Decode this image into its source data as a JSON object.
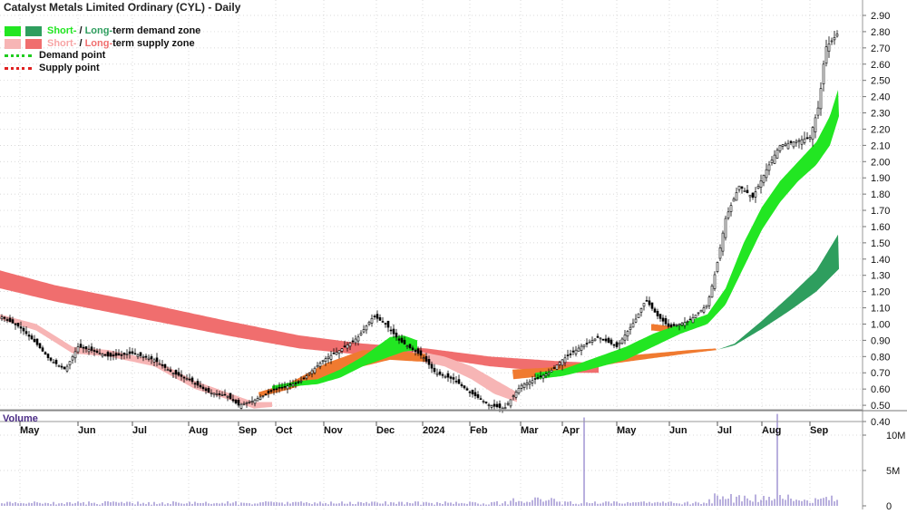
{
  "title": "Catalyst Metals Limited Ordinary (CYL) - Daily",
  "legend": {
    "demand": {
      "short": "Short-",
      "sep": " / ",
      "long": "Long-",
      "rest": "term demand zone"
    },
    "supply": {
      "short": "Short-",
      "sep": " / ",
      "long": "Long-",
      "rest": "term supply zone"
    },
    "demand_point": "Demand point",
    "supply_point": "Supply point"
  },
  "volume_label": "Volume",
  "colors": {
    "short_demand": "#22e622",
    "long_demand": "#2e9e5e",
    "short_supply": "#f7b5b5",
    "long_supply": "#f06e6e",
    "demand_point": "#1fcc1f",
    "supply_point": "#e02020",
    "overlap": "#f07a30",
    "candle": "#000000",
    "volume": "#8a7cc8",
    "grid": "#cccccc",
    "volume_text": "#4b2c86"
  },
  "chart_data": [
    {
      "type": "line",
      "title": "Catalyst Metals Limited Ordinary (CYL) - Daily",
      "price_scale": {
        "ticks": [
          "2.90",
          "2.80",
          "2.70",
          "2.60",
          "2.50",
          "2.40",
          "2.30",
          "2.20",
          "2.10",
          "2.00",
          "1.90",
          "1.80",
          "1.70",
          "1.60",
          "1.50",
          "1.40",
          "1.30",
          "1.20",
          "1.10",
          "1.00",
          "0.90",
          "0.80",
          "0.70",
          "0.60",
          "0.50",
          "0.40"
        ],
        "ylim": [
          0.37,
          2.92
        ]
      },
      "x_ticks": [
        "May",
        "Jun",
        "Jul",
        "Aug",
        "Sep",
        "Oct",
        "Nov",
        "Dec",
        "2024",
        "Feb",
        "Mar",
        "Apr",
        "May",
        "Jun",
        "Jul",
        "Aug",
        "Sep"
      ],
      "price_keypoints": [
        [
          "Apr",
          1.05
        ],
        [
          "May",
          0.95
        ],
        [
          "mid-May",
          0.72
        ],
        [
          "Jun",
          0.86
        ],
        [
          "Jul",
          0.82
        ],
        [
          "Aug",
          0.68
        ],
        [
          "mid-Aug",
          0.57
        ],
        [
          "Sep",
          0.5
        ],
        [
          "Oct",
          0.62
        ],
        [
          "Nov",
          0.8
        ],
        [
          "late-Nov",
          1.05
        ],
        [
          "Dec",
          0.95
        ],
        [
          "mid-Dec",
          0.9
        ],
        [
          "2024",
          0.78
        ],
        [
          "mid-Jan",
          0.65
        ],
        [
          "Feb",
          0.55
        ],
        [
          "late-Feb",
          0.48
        ],
        [
          "Mar",
          0.6
        ],
        [
          "Apr",
          0.78
        ],
        [
          "mid-Apr",
          0.92
        ],
        [
          "May",
          0.85
        ],
        [
          "late-May",
          1.15
        ],
        [
          "Jun",
          0.97
        ],
        [
          "Jul",
          1.2
        ],
        [
          "mid-Jul",
          1.75
        ],
        [
          "Aug",
          1.75
        ],
        [
          "mid-Aug",
          2.05
        ],
        [
          "Sep",
          2.1
        ],
        [
          "late-Sep",
          2.7
        ],
        [
          "end",
          2.85
        ]
      ],
      "series": [
        {
          "name": "Short-term demand zone",
          "upper": [
            [
              0.62,
              0.63
            ],
            [
              0.8,
              0.82
            ],
            [
              0.94,
              0.92
            ],
            [
              0.78,
              0.76
            ],
            [
              1.05,
              1.04
            ],
            [
              1.58,
              1.58
            ],
            [
              2.1,
              2.1
            ],
            [
              2.46,
              2.46
            ]
          ],
          "lower": [
            [
              0.6,
              0.61
            ],
            [
              0.78,
              0.79
            ],
            [
              0.9,
              0.89
            ],
            [
              0.74,
              0.74
            ],
            [
              1.0,
              0.98
            ],
            [
              1.48,
              1.45
            ],
            [
              2.0,
              2.0
            ],
            [
              2.28,
              2.28
            ]
          ]
        },
        {
          "name": "Long-term demand zone",
          "upper": [
            [
              0.83,
              0.84
            ],
            [
              1.2,
              1.2
            ],
            [
              1.56,
              1.56
            ]
          ],
          "lower": [
            [
              0.83,
              0.84
            ],
            [
              1.1,
              1.1
            ],
            [
              1.35,
              1.35
            ]
          ]
        },
        {
          "name": "Short-term supply zone",
          "upper": [
            [
              1.05,
              1.05
            ],
            [
              0.85,
              0.85
            ],
            [
              0.65,
              0.65
            ],
            [
              0.48,
              0.48
            ]
          ]
        },
        {
          "name": "Long-term supply zone",
          "upper": [
            [
              1.33,
              1.33
            ],
            [
              1.1,
              1.1
            ],
            [
              0.88,
              0.88
            ],
            [
              0.8,
              0.8
            ],
            [
              0.76,
              0.76
            ]
          ],
          "lower": [
            [
              1.22,
              1.22
            ],
            [
              0.98,
              0.98
            ],
            [
              0.78,
              0.78
            ],
            [
              0.72,
              0.72
            ],
            [
              0.7,
              0.7
            ]
          ]
        }
      ]
    },
    {
      "type": "bar",
      "title": "Volume",
      "y_ticks": [
        "10M",
        "5M",
        "0"
      ],
      "spikes": [
        {
          "month": "May",
          "value": 12.5,
          "unit": "M"
        },
        {
          "month": "Aug",
          "value": 13.0,
          "unit": "M"
        }
      ]
    }
  ]
}
